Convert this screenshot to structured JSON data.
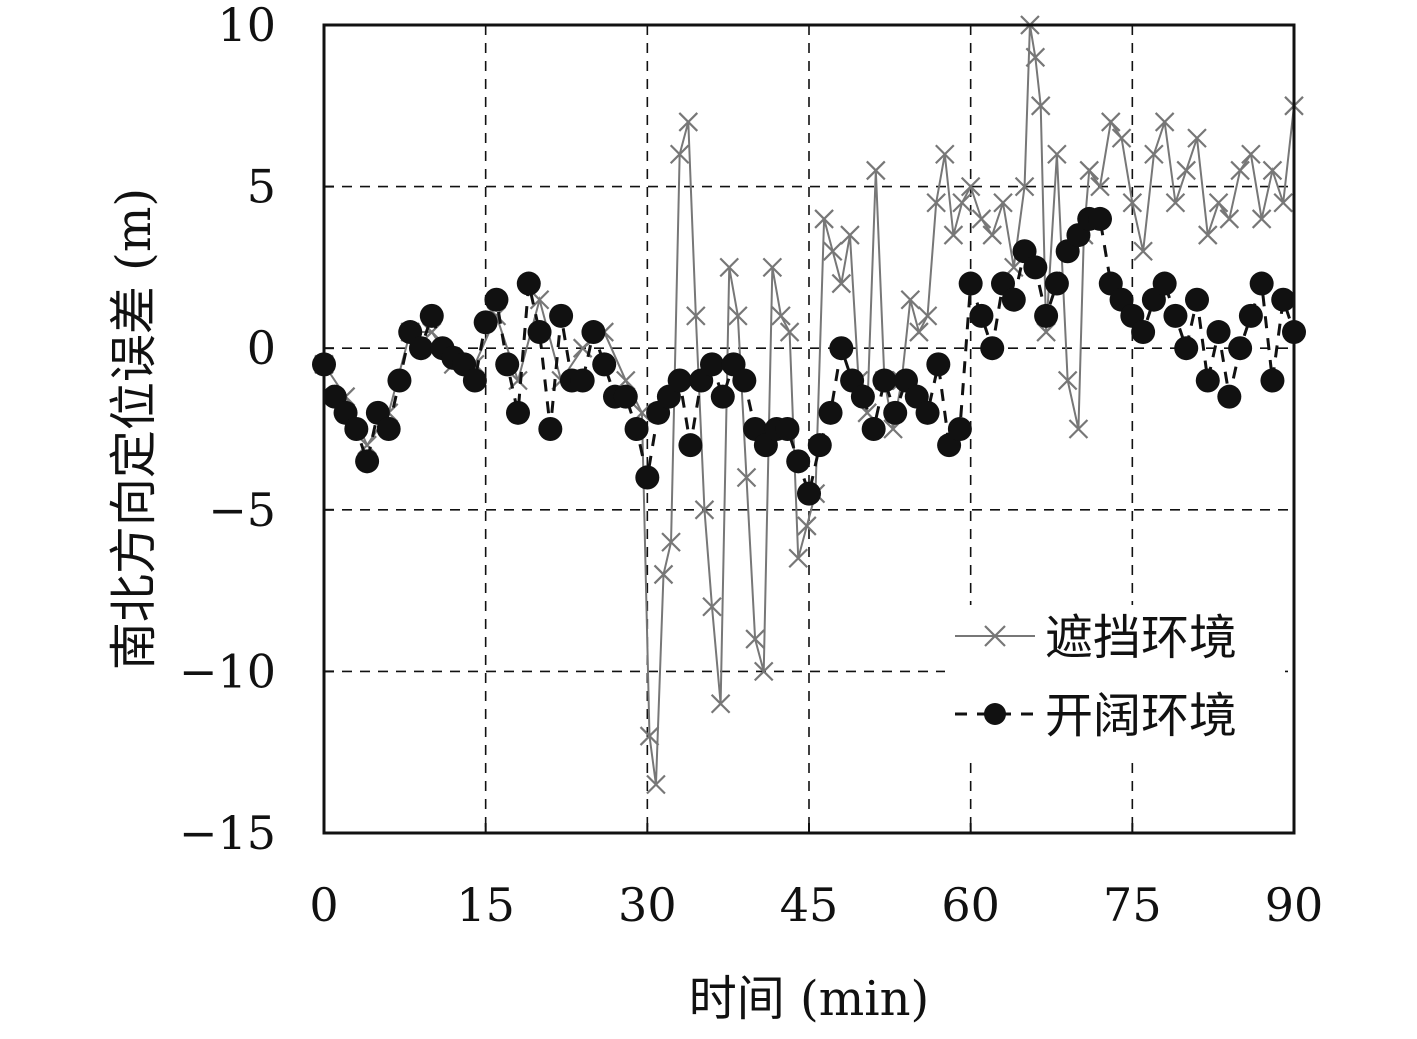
{
  "chart_data": {
    "type": "line",
    "xlabel": "时间 (min)",
    "ylabel": "南北方向定位误差 (m)",
    "xlim": [
      0,
      90
    ],
    "ylim": [
      -15,
      10
    ],
    "xticks": [
      "0",
      "15",
      "30",
      "45",
      "60",
      "75",
      "90"
    ],
    "yticks": [
      "10",
      "5",
      "0",
      "−5",
      "−10",
      "−15"
    ],
    "grid": true,
    "grid_style": "dashed",
    "legend_position": "bottom-right",
    "series": [
      {
        "name": "遮挡环境",
        "marker": "x",
        "color": "#777777",
        "x": [
          0,
          2,
          4,
          6,
          8,
          10,
          12,
          14,
          16,
          18,
          20,
          22,
          24,
          26,
          28,
          29.5,
          30.2,
          30.8,
          31.5,
          32.2,
          33,
          33.8,
          34.5,
          35.3,
          36,
          36.8,
          37.6,
          38.4,
          39.2,
          40,
          40.8,
          41.6,
          42.4,
          43.2,
          44,
          44.8,
          45.6,
          46.4,
          47.2,
          48,
          48.8,
          49.6,
          50.4,
          51.2,
          52,
          52.8,
          53.6,
          54.4,
          55.2,
          56,
          56.8,
          57.6,
          58.4,
          59.2,
          60,
          61,
          62,
          63,
          64,
          65,
          65.5,
          66,
          66.5,
          67,
          68,
          69,
          70,
          70.5,
          71,
          72,
          73,
          74,
          75,
          76,
          77,
          78,
          79,
          80,
          81,
          82,
          83,
          84,
          85,
          86,
          87,
          88,
          89,
          90
        ],
        "values": [
          -0.5,
          -1.5,
          -3.0,
          -2.0,
          0.5,
          0.5,
          -0.5,
          -0.5,
          1.0,
          -1.0,
          1.5,
          -1.0,
          0.0,
          0.5,
          -1.0,
          -2.0,
          -12.0,
          -13.5,
          -7.0,
          -6.0,
          6.0,
          7.0,
          1.0,
          -5.0,
          -8.0,
          -11.0,
          2.5,
          1.0,
          -4.0,
          -9.0,
          -10.0,
          2.5,
          1.0,
          0.5,
          -6.5,
          -5.5,
          -4.5,
          4.0,
          3.0,
          2.0,
          3.5,
          -1.0,
          -2.0,
          5.5,
          -1.0,
          -2.5,
          -1.0,
          1.5,
          0.5,
          1.0,
          4.5,
          6.0,
          3.5,
          4.5,
          5.0,
          4.0,
          3.5,
          4.5,
          2.5,
          5.0,
          10.0,
          9.0,
          7.5,
          0.5,
          6.0,
          -1.0,
          -2.5,
          3.5,
          5.5,
          5.0,
          7.0,
          6.5,
          4.5,
          3.0,
          6.0,
          7.0,
          4.5,
          5.5,
          6.5,
          3.5,
          4.5,
          4.0,
          5.5,
          6.0,
          4.0,
          5.5,
          4.5,
          7.5
        ]
      },
      {
        "name": "开阔环境",
        "marker": "o",
        "color": "#111111",
        "x": [
          0,
          1,
          2,
          3,
          4,
          5,
          6,
          7,
          8,
          9,
          10,
          11,
          12,
          13,
          14,
          15,
          16,
          17,
          18,
          19,
          20,
          21,
          22,
          23,
          24,
          25,
          26,
          27,
          28,
          29,
          30,
          31,
          32,
          33,
          34,
          35,
          36,
          37,
          38,
          39,
          40,
          41,
          42,
          43,
          44,
          45,
          46,
          47,
          48,
          49,
          50,
          51,
          52,
          53,
          54,
          55,
          56,
          57,
          58,
          59,
          60,
          61,
          62,
          63,
          64,
          65,
          66,
          67,
          68,
          69,
          70,
          71,
          72,
          73,
          74,
          75,
          76,
          77,
          78,
          79,
          80,
          81,
          82,
          83,
          84,
          85,
          86,
          87,
          88,
          89,
          90
        ],
        "values": [
          -0.5,
          -1.5,
          -2.0,
          -2.5,
          -3.5,
          -2.0,
          -2.5,
          -1.0,
          0.5,
          0.0,
          1.0,
          0.0,
          -0.3,
          -0.5,
          -1.0,
          0.8,
          1.5,
          -0.5,
          -2.0,
          2.0,
          0.5,
          -2.5,
          1.0,
          -1.0,
          -1.0,
          0.5,
          -0.5,
          -1.5,
          -1.5,
          -2.5,
          -4.0,
          -2.0,
          -1.5,
          -1.0,
          -3.0,
          -1.0,
          -0.5,
          -1.5,
          -0.5,
          -1.0,
          -2.5,
          -3.0,
          -2.5,
          -2.5,
          -3.5,
          -4.5,
          -3.0,
          -2.0,
          0.0,
          -1.0,
          -1.5,
          -2.5,
          -1.0,
          -2.0,
          -1.0,
          -1.5,
          -2.0,
          -0.5,
          -3.0,
          -2.5,
          2.0,
          1.0,
          0.0,
          2.0,
          1.5,
          3.0,
          2.5,
          1.0,
          2.0,
          3.0,
          3.5,
          4.0,
          4.0,
          2.0,
          1.5,
          1.0,
          0.5,
          1.5,
          2.0,
          1.0,
          0.0,
          1.5,
          -1.0,
          0.5,
          -1.5,
          0.0,
          1.0,
          2.0,
          -1.0,
          1.5,
          0.5
        ]
      }
    ]
  }
}
